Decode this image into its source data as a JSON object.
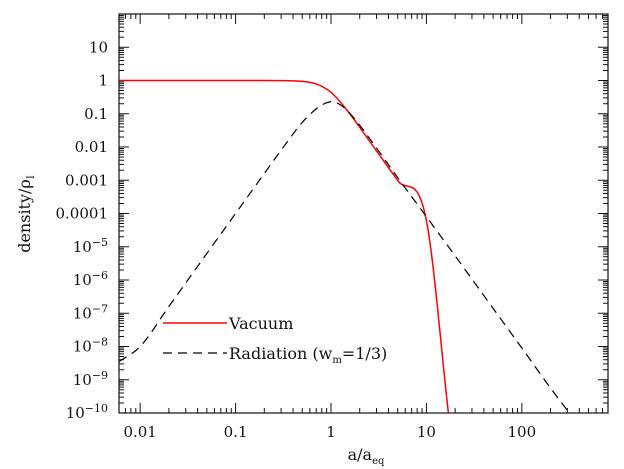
{
  "chart_data": {
    "type": "line",
    "xscale": "log",
    "yscale": "log",
    "xlim": [
      0.006,
      800
    ],
    "ylim": [
      1e-10,
      100
    ],
    "grid": false,
    "legend_position": "bottom-left",
    "xlabel": {
      "main": "a/a",
      "sub": "eq"
    },
    "ylabel": {
      "main": "density/ρ",
      "sub": "I"
    },
    "xticks": [
      {
        "value": 0.01,
        "label": "0.01"
      },
      {
        "value": 0.1,
        "label": "0.1"
      },
      {
        "value": 1,
        "label": "1"
      },
      {
        "value": 10,
        "label": "10"
      },
      {
        "value": 100,
        "label": "100"
      }
    ],
    "yticks": [
      {
        "value": 10,
        "mant": "10",
        "exp": ""
      },
      {
        "value": 1,
        "mant": "1",
        "exp": ""
      },
      {
        "value": 0.1,
        "mant": "0.1",
        "exp": ""
      },
      {
        "value": 0.01,
        "mant": "0.01",
        "exp": ""
      },
      {
        "value": 0.001,
        "mant": "0.001",
        "exp": ""
      },
      {
        "value": 0.0001,
        "mant": "0.0001",
        "exp": ""
      },
      {
        "value": 1e-05,
        "mant": "10",
        "exp": "−5"
      },
      {
        "value": 1e-06,
        "mant": "10",
        "exp": "−6"
      },
      {
        "value": 1e-07,
        "mant": "10",
        "exp": "−7"
      },
      {
        "value": 1e-08,
        "mant": "10",
        "exp": "−8"
      },
      {
        "value": 1e-09,
        "mant": "10",
        "exp": "−9"
      },
      {
        "value": 1e-10,
        "mant": "10",
        "exp": "−10"
      }
    ],
    "series": [
      {
        "name": "Vacuum",
        "color": "#ff0000",
        "dash": "solid",
        "x": [
          0.006,
          0.01,
          0.05,
          0.1,
          0.2,
          0.3,
          0.4,
          0.5,
          0.6,
          0.7,
          0.8,
          0.9,
          1,
          1.2,
          1.5,
          2,
          3,
          5,
          10,
          17
        ],
        "y": [
          1,
          1,
          1,
          1,
          1,
          0.99,
          0.975,
          0.94,
          0.88,
          0.79,
          0.67,
          0.55,
          0.44,
          0.26,
          0.12,
          0.039,
          0.0076,
          0.00098,
          6.1e-05,
          1e-10
        ]
      },
      {
        "name": "Radiation",
        "name_parts": {
          "before": "Radiation (w",
          "sub": "m",
          "after": "=1/3)"
        },
        "color": "#000000",
        "dash": "dashed",
        "x": [
          0.006,
          0.01,
          0.02,
          0.05,
          0.1,
          0.2,
          0.3,
          0.5,
          0.7,
          0.85,
          1,
          1.2,
          1.5,
          2,
          3,
          5,
          10,
          20,
          50,
          100,
          200,
          300
        ],
        "y": [
          3.5e-09,
          1e-08,
          1.6e-07,
          6.3e-06,
          0.0001,
          0.0016,
          0.008,
          0.055,
          0.14,
          0.2,
          0.23,
          0.2,
          0.12,
          0.045,
          0.0093,
          0.0012,
          8e-05,
          5.3e-06,
          1.4e-07,
          9e-09,
          5.6e-10,
          1.2e-10
        ]
      }
    ]
  }
}
